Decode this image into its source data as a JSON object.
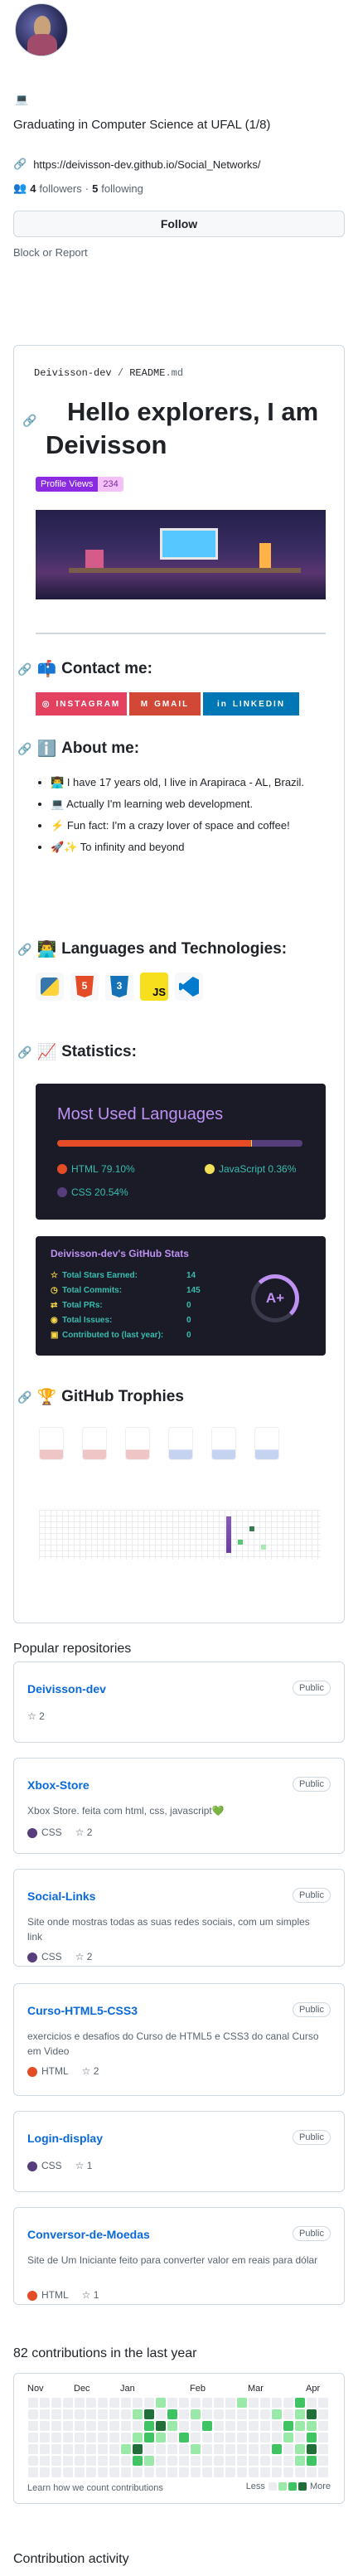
{
  "profile": {
    "avatar_alt": "Profile avatar",
    "status_emoji": "💻",
    "bio": "Graduating in Computer Science at UFAL (1/8)",
    "website": "https://deivisson-dev.github.io/Social_Networks/",
    "followers_count": "4",
    "followers_label": "followers",
    "following_count": "5",
    "following_label": "following",
    "follow_button": "Follow",
    "block_link": "Block or Report"
  },
  "readme": {
    "path_user": "Deivisson-dev",
    "path_sep": " / ",
    "path_file": "README",
    "path_ext": ".md",
    "title": "Hello explorers, I am Deivisson",
    "profile_views_label": "Profile Views",
    "profile_views_count": "234",
    "contact_heading": "Contact me:",
    "contact_badges": [
      "INSTAGRAM",
      "GMAIL",
      "LINKEDIN"
    ],
    "about_heading": "About me:",
    "about_items": [
      "I have 17 years old, I live in Arapiraca - AL, Brazil.",
      "Actually I'm learning web development.",
      "Fun fact: I'm a crazy lover of space and coffee!",
      "To infinity and beyond"
    ],
    "lang_heading": "Languages and Technologies:",
    "tech_icons": [
      "python-icon",
      "html5-icon",
      "css3-icon",
      "javascript-icon",
      "vscode-icon"
    ],
    "stats_heading": "Statistics:",
    "most_used_title": "Most Used Languages",
    "languages": [
      {
        "name": "HTML",
        "percent": "79.10%",
        "color": "#e34c26"
      },
      {
        "name": "JavaScript",
        "percent": "0.36%",
        "color": "#f1e05a"
      },
      {
        "name": "CSS",
        "percent": "20.54%",
        "color": "#563d7c"
      }
    ],
    "stats_title": "Deivisson-dev's GitHub Stats",
    "stats": [
      {
        "label": "Total Stars Earned:",
        "value": "14"
      },
      {
        "label": "Total Commits:",
        "value": "145"
      },
      {
        "label": "Total PRs:",
        "value": "0"
      },
      {
        "label": "Total Issues:",
        "value": "0"
      },
      {
        "label": "Contributed to (last year):",
        "value": "0"
      }
    ],
    "rank": "A+",
    "trophies_heading": "GitHub Trophies"
  },
  "popular_heading": "Popular repositories",
  "public_label": "Public",
  "repos": [
    {
      "name": "Deivisson-dev",
      "desc": "",
      "lang": "",
      "lang_color": "",
      "stars": "2"
    },
    {
      "name": "Xbox-Store",
      "desc": "Xbox Store. feita com html, css, javascript💚",
      "lang": "CSS",
      "lang_color": "#563d7c",
      "stars": "2"
    },
    {
      "name": "Social-Links",
      "desc": "Site onde mostras todas as suas redes sociais, com um simples link",
      "lang": "CSS",
      "lang_color": "#563d7c",
      "stars": "2"
    },
    {
      "name": "Curso-HTML5-CSS3",
      "desc": "exercicios e desafios do Curso de HTML5 e CSS3 do canal Curso em Video",
      "lang": "HTML",
      "lang_color": "#e34c26",
      "stars": "2"
    },
    {
      "name": "Login-display",
      "desc": "",
      "lang": "CSS",
      "lang_color": "#563d7c",
      "stars": "1"
    },
    {
      "name": "Conversor-de-Moedas",
      "desc": "Site de Um Iniciante feito para converter valor em reais para dólar",
      "lang": "HTML",
      "lang_color": "#e34c26",
      "stars": "1"
    }
  ],
  "contrib": {
    "heading": "82 contributions in the last year",
    "months": [
      "Nov",
      "Dec",
      "Jan",
      "Feb",
      "Mar",
      "Apr"
    ],
    "learn_link": "Learn how we count contributions",
    "less": "Less",
    "more": "More",
    "levels": [
      [
        0,
        0,
        0,
        0,
        0,
        0,
        0,
        0,
        0,
        0,
        0,
        1,
        0,
        0,
        0,
        0,
        0,
        0,
        1,
        0,
        0,
        0,
        0,
        2,
        0,
        0
      ],
      [
        0,
        0,
        0,
        0,
        0,
        0,
        0,
        0,
        0,
        1,
        3,
        0,
        2,
        0,
        1,
        0,
        0,
        0,
        0,
        0,
        0,
        1,
        0,
        1,
        3,
        0
      ],
      [
        0,
        0,
        0,
        0,
        0,
        0,
        0,
        0,
        0,
        0,
        2,
        3,
        1,
        0,
        0,
        2,
        0,
        0,
        0,
        0,
        0,
        0,
        2,
        1,
        1,
        0
      ],
      [
        0,
        0,
        0,
        0,
        0,
        0,
        0,
        0,
        0,
        1,
        2,
        1,
        0,
        2,
        0,
        0,
        0,
        0,
        0,
        0,
        0,
        0,
        1,
        0,
        2,
        0
      ],
      [
        0,
        0,
        0,
        0,
        0,
        0,
        0,
        0,
        1,
        3,
        0,
        0,
        0,
        0,
        1,
        0,
        0,
        0,
        0,
        0,
        0,
        2,
        0,
        1,
        3,
        0
      ],
      [
        0,
        0,
        0,
        0,
        0,
        0,
        0,
        0,
        0,
        2,
        1,
        0,
        0,
        0,
        0,
        0,
        0,
        0,
        0,
        0,
        0,
        0,
        0,
        1,
        2,
        0
      ],
      [
        0,
        0,
        0,
        0,
        0,
        0,
        0,
        0,
        0,
        0,
        0,
        0,
        0,
        0,
        0,
        0,
        0,
        0,
        0,
        0,
        0,
        0,
        0,
        0,
        0,
        0
      ]
    ],
    "level_colors": [
      "#ebedf0",
      "#9be9a8",
      "#40c463",
      "#216e39"
    ]
  },
  "activity_heading": "Contribution activity"
}
